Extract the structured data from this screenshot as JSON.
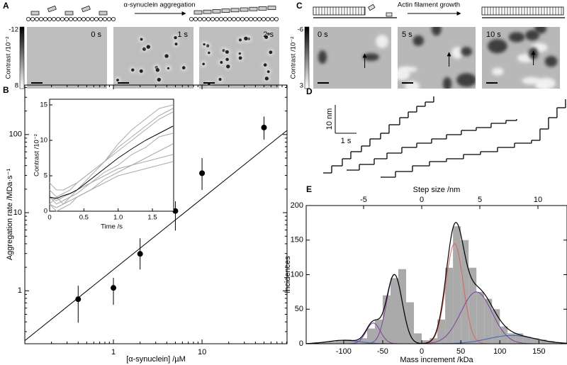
{
  "chart_data": [
    {
      "type": "micrograph",
      "panel": "A",
      "title": "α-synuclein aggregation",
      "frames": [
        "0 s",
        "1 s",
        "2 s"
      ],
      "colorbar_label": "Contrast /10⁻²",
      "colorbar_ticks": [
        -12,
        8
      ]
    },
    {
      "type": "micrograph",
      "panel": "C",
      "title": "Actin filament growth",
      "frames": [
        "0 s",
        "5 s",
        "10 s"
      ],
      "colorbar_label": "Contrast /10⁻²",
      "colorbar_ticks": [
        -6,
        3
      ]
    },
    {
      "type": "scatter",
      "panel": "B",
      "xlabel": "[α-synuclein] /µM",
      "ylabel": "Aggregation rate /MDa·s⁻¹",
      "xlog": true,
      "ylog": true,
      "xlim": [
        0.1,
        91
      ],
      "ylim": [
        0.21,
        430
      ],
      "xticks": [
        1,
        10
      ],
      "yticks": [
        1,
        10,
        100
      ],
      "x": [
        0.4,
        1,
        2,
        5,
        10,
        50
      ],
      "values": [
        0.78,
        1.09,
        2.97,
        10.5,
        32,
        123
      ],
      "ylow": [
        0.39,
        0.66,
        1.87,
        5.9,
        19.5,
        86
      ],
      "yhigh": [
        1.16,
        1.46,
        4.7,
        14,
        50,
        170
      ],
      "color": "#000000",
      "fit": {
        "x": [
          0.1,
          91
        ],
        "values": [
          0.23,
          113
        ]
      },
      "inset": {
        "type": "line",
        "xlabel": "Time /s",
        "ylabel": "Contrast /10⁻²",
        "xlim": [
          0,
          1.81
        ],
        "ylim": [
          0,
          15.8
        ],
        "xticks": [
          0,
          0.5,
          {
            "value": 1,
            "label": "1.0"
          },
          1.5
        ],
        "yticks": [
          0,
          5,
          10,
          15
        ],
        "x": [
          0,
          0.1,
          0.2,
          0.3,
          0.4,
          0.6,
          0.8,
          1.0,
          1.2,
          1.4,
          1.6,
          1.8
        ],
        "series": [
          {
            "color": "#aaaaaa",
            "values": [
              1,
              2,
              1,
              2,
              3,
              5,
              7,
              9.5,
              11.5,
              13,
              14.5,
              15
            ]
          },
          {
            "color": "#aaaaaa",
            "values": [
              3,
              2,
              2.5,
              3,
              4,
              5.5,
              7,
              8.5,
              10,
              11.5,
              13,
              14
            ]
          },
          {
            "color": "#aaaaaa",
            "values": [
              2,
              1,
              1.5,
              2,
              2.5,
              4,
              5.5,
              6.5,
              8,
              9,
              10.5,
              11
            ]
          },
          {
            "color": "#aaaaaa",
            "values": [
              1,
              0.5,
              1,
              1.5,
              2,
              3,
              4.5,
              5.5,
              6.5,
              7.5,
              8.5,
              9.5
            ]
          },
          {
            "color": "#aaaaaa",
            "values": [
              2,
              1.5,
              2,
              2.5,
              3,
              4,
              5,
              6,
              6.5,
              7,
              7.5,
              8
            ]
          },
          {
            "color": "#aaaaaa",
            "values": [
              4,
              3,
              3,
              3.5,
              4,
              5.5,
              7,
              9,
              10.5,
              12,
              13.5,
              14.5
            ]
          },
          {
            "color": "#aaaaaa",
            "values": [
              1,
              0,
              0.5,
              1,
              2,
              3,
              4,
              5,
              5.5,
              6,
              6.5,
              7
            ]
          },
          {
            "color": "#000000",
            "values": [
              2,
              1.8,
              2.2,
              2.5,
              3,
              4.5,
              6,
              7.5,
              8.8,
              10,
              11,
              12
            ]
          }
        ]
      }
    },
    {
      "type": "step",
      "panel": "D",
      "xlim": [
        0,
        11.67
      ],
      "ylim": [
        0,
        32.5
      ],
      "scalebar": {
        "y": 10,
        "y_label": "10 nm",
        "x": 1,
        "x_label": "1 s"
      },
      "series": [
        {
          "color": "#000000",
          "x": [
            0.2,
            0.6,
            1.1,
            1.5,
            2.0,
            2.4,
            2.9,
            3.3,
            3.8,
            4.2,
            4.6,
            5.0,
            5.4
          ],
          "values": [
            4,
            6.5,
            9,
            11.5,
            13.5,
            16,
            18,
            21,
            23.5,
            25.5,
            27.5,
            29,
            31
          ]
        },
        {
          "color": "#000000",
          "x": [
            1.3,
            1.9,
            2.6,
            3.2,
            3.9,
            4.6,
            5.3,
            6.0,
            6.7,
            7.4,
            8.1,
            8.8,
            9.3
          ],
          "values": [
            5,
            7,
            9,
            11,
            13,
            14.5,
            16,
            17.5,
            19,
            20,
            21.5,
            22.5,
            23
          ]
        },
        {
          "color": "#000000",
          "x": [
            2.9,
            3.6,
            4.4,
            5.2,
            6.0,
            6.8,
            7.6,
            8.4,
            9.2,
            10.0,
            10.4,
            10.8,
            11.2,
            11.6
          ],
          "values": [
            2.5,
            4.5,
            6.5,
            8,
            9,
            10.5,
            11.5,
            13,
            14.5,
            15.5,
            19.5,
            23.5,
            27,
            30
          ]
        }
      ]
    },
    {
      "type": "histogram",
      "panel": "E",
      "xlabel": "Mass increment /kDa",
      "x2label": "Step size /nm",
      "ylabel": "Incidences",
      "xlim": [
        -148,
        186
      ],
      "xticks": [
        -100,
        -50,
        0,
        50,
        100,
        150
      ],
      "x2lim": [
        -9.94,
        12.5
      ],
      "x2ticks": [
        -5,
        0,
        5,
        10
      ],
      "ylim": [
        0,
        200
      ],
      "yticks": [
        0,
        50,
        100,
        150,
        200
      ],
      "bins": [
        -140,
        -130,
        -120,
        -110,
        -100,
        -90,
        -80,
        -70,
        -60,
        -50,
        -40,
        -30,
        -20,
        -10,
        0,
        10,
        20,
        30,
        40,
        50,
        60,
        70,
        80,
        90,
        100,
        110,
        120,
        130,
        140,
        150,
        160,
        170,
        180
      ],
      "counts": [
        2,
        2,
        3,
        4,
        6,
        5,
        8,
        22,
        35,
        70,
        95,
        108,
        60,
        15,
        5,
        8,
        35,
        110,
        170,
        150,
        110,
        75,
        65,
        50,
        25,
        15,
        15,
        10,
        8,
        6,
        4,
        2
      ],
      "color": "#aaaaaa",
      "fit_color": "#000000",
      "components": [
        {
          "color": "#e06060",
          "amp": 145,
          "mean": 42,
          "sd": 11
        },
        {
          "color": "#8040a0",
          "amp": 30,
          "mean": -62,
          "sd": 9
        },
        {
          "color": "#8040a0",
          "amp": 100,
          "mean": -35,
          "sd": 10
        },
        {
          "color": "#8040a0",
          "amp": 75,
          "mean": 70,
          "sd": 20
        },
        {
          "color": "#4060c0",
          "amp": 5,
          "mean": -100,
          "sd": 20
        },
        {
          "color": "#4060c0",
          "amp": 12,
          "mean": 115,
          "sd": 30
        }
      ]
    }
  ]
}
